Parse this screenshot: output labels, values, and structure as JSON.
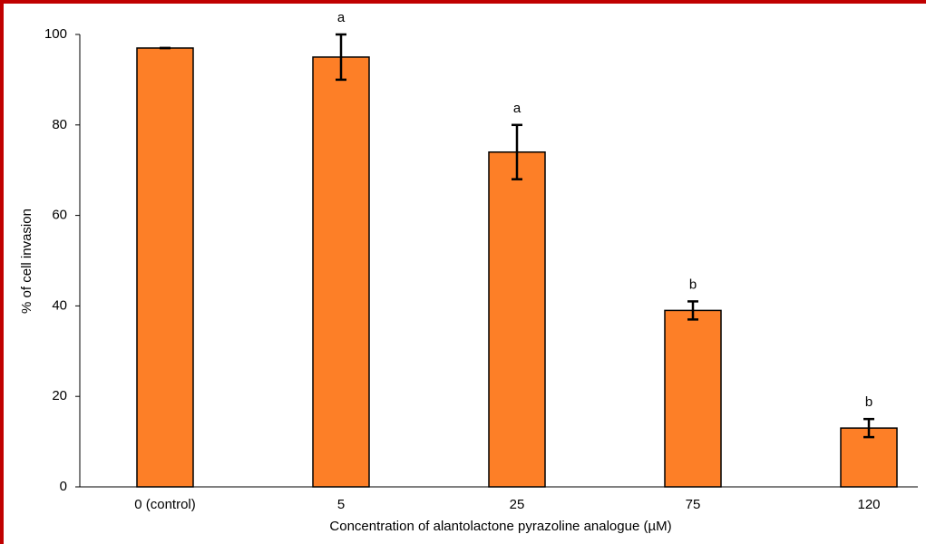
{
  "chart_data": {
    "type": "bar",
    "x_label": "Concentration of alantolactone pyrazoline analogue (µM)",
    "y_label": "% of cell invasion",
    "categories": [
      "0 (control)",
      "5",
      "25",
      "75",
      "120"
    ],
    "values": [
      97,
      95,
      74,
      39,
      13
    ],
    "errors": [
      0,
      5,
      6,
      2,
      2
    ],
    "annotations": [
      null,
      "a",
      "a",
      "b",
      "b"
    ],
    "color": "#fd7f27",
    "ylim": [
      0,
      100
    ],
    "yticks": [
      0,
      20,
      40,
      60,
      80,
      100
    ],
    "grid": false
  }
}
